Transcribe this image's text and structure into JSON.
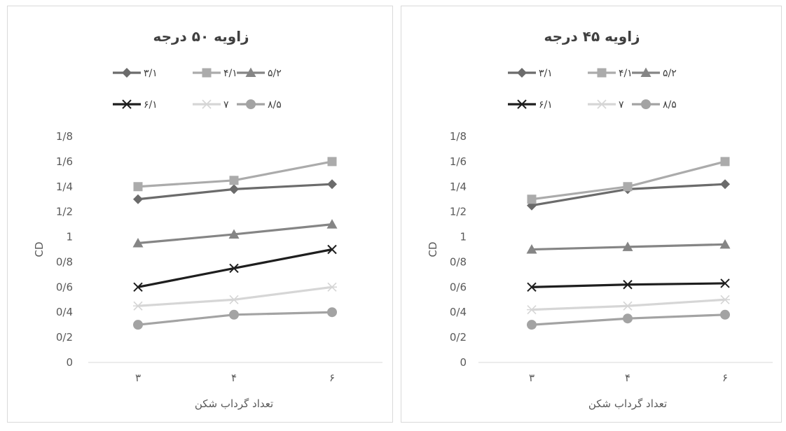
{
  "chart_data": [
    {
      "type": "line",
      "title": "زاویه ۵۰ درجه",
      "xlabel": "تعداد گرداب شکن",
      "ylabel": "CD",
      "categories": [
        "۳",
        "۴",
        "۶"
      ],
      "ylim": [
        0,
        1.8
      ],
      "yticks": [
        "0",
        "0/2",
        "0/4",
        "0/6",
        "0/8",
        "1",
        "1/2",
        "1/4",
        "1/6",
        "1/8"
      ],
      "grid": false,
      "legend": "top",
      "series": [
        {
          "name": "۳/۱",
          "values": [
            1.3,
            1.38,
            1.42
          ],
          "color": "#6b6b6b",
          "marker": "diamond"
        },
        {
          "name": "۴/۱",
          "values": [
            1.4,
            1.45,
            1.6
          ],
          "color": "#ababab",
          "marker": "square"
        },
        {
          "name": "۵/۲",
          "values": [
            0.95,
            1.02,
            1.1
          ],
          "color": "#858585",
          "marker": "triangle"
        },
        {
          "name": "۶/۱",
          "values": [
            0.6,
            0.75,
            0.9
          ],
          "color": "#1e1e1e",
          "marker": "x"
        },
        {
          "name": "۷",
          "values": [
            0.45,
            0.5,
            0.6
          ],
          "color": "#d6d6d6",
          "marker": "star"
        },
        {
          "name": "۸/۵",
          "values": [
            0.3,
            0.38,
            0.4
          ],
          "color": "#a3a3a3",
          "marker": "circle"
        }
      ]
    },
    {
      "type": "line",
      "title": "زاویه ۴۵ درجه",
      "xlabel": "تعداد گرداب شکن",
      "ylabel": "CD",
      "categories": [
        "۳",
        "۴",
        "۶"
      ],
      "ylim": [
        0,
        1.8
      ],
      "yticks": [
        "0",
        "0/2",
        "0/4",
        "0/6",
        "0/8",
        "1",
        "1/2",
        "1/4",
        "1/6",
        "1/8"
      ],
      "grid": false,
      "legend": "top",
      "series": [
        {
          "name": "۳/۱",
          "values": [
            1.25,
            1.38,
            1.42
          ],
          "color": "#6b6b6b",
          "marker": "diamond"
        },
        {
          "name": "۴/۱",
          "values": [
            1.3,
            1.4,
            1.6
          ],
          "color": "#ababab",
          "marker": "square"
        },
        {
          "name": "۵/۲",
          "values": [
            0.9,
            0.92,
            0.94
          ],
          "color": "#858585",
          "marker": "triangle"
        },
        {
          "name": "۶/۱",
          "values": [
            0.6,
            0.62,
            0.63
          ],
          "color": "#1e1e1e",
          "marker": "x"
        },
        {
          "name": "۷",
          "values": [
            0.42,
            0.45,
            0.5
          ],
          "color": "#d6d6d6",
          "marker": "star"
        },
        {
          "name": "۸/۵",
          "values": [
            0.3,
            0.35,
            0.38
          ],
          "color": "#a3a3a3",
          "marker": "circle"
        }
      ]
    }
  ]
}
